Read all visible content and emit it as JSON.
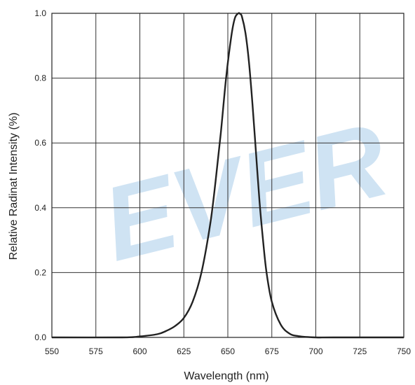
{
  "chart_data": {
    "type": "line",
    "title": "",
    "xlabel": "Wavelength (nm)",
    "ylabel": "Relative Radinat Intensity (%)",
    "xlim": [
      550,
      750
    ],
    "ylim": [
      0.0,
      1.0
    ],
    "x_ticks": [
      "550",
      "575",
      "600",
      "625",
      "650",
      "675",
      "700",
      "725",
      "750"
    ],
    "y_ticks": [
      "0.0",
      "0.2",
      "0.4",
      "0.6",
      "0.8",
      "1.0"
    ],
    "grid": true,
    "watermark": "EVER",
    "series": [
      {
        "color": "#222222",
        "x": [
          550,
          590,
          600,
          610,
          615,
          620,
          625,
          630,
          635,
          640,
          643,
          646,
          649,
          652,
          654,
          656,
          657,
          658,
          660,
          662,
          664,
          666,
          668,
          670,
          672,
          675,
          680,
          685,
          690,
          700,
          710,
          750
        ],
        "y": [
          0.0,
          0.0,
          0.003,
          0.01,
          0.02,
          0.035,
          0.06,
          0.11,
          0.2,
          0.35,
          0.48,
          0.63,
          0.8,
          0.93,
          0.985,
          1.0,
          0.998,
          0.99,
          0.94,
          0.85,
          0.72,
          0.57,
          0.42,
          0.3,
          0.2,
          0.11,
          0.04,
          0.012,
          0.004,
          0.0,
          0.0,
          0.0
        ]
      }
    ]
  }
}
